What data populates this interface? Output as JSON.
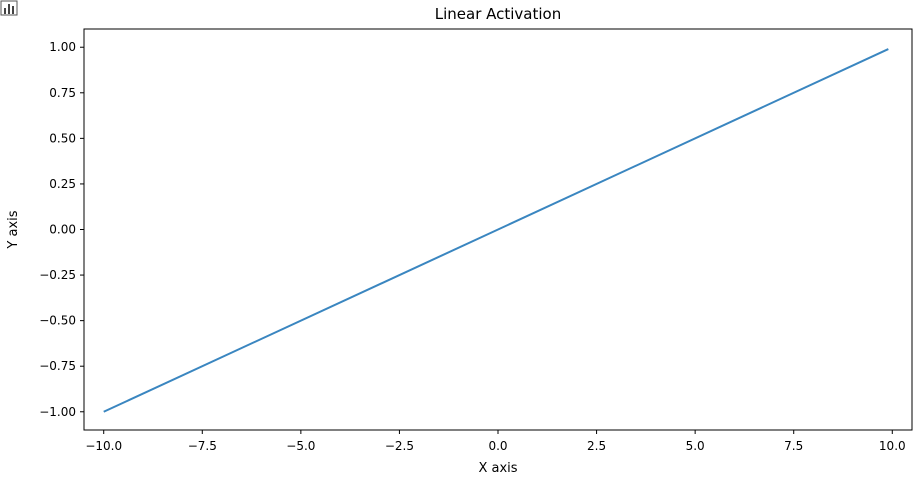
{
  "toolbar": {
    "icon": "bar-chart-icon"
  },
  "chart_data": {
    "type": "line",
    "title": "Linear Activation",
    "xlabel": "X axis",
    "ylabel": "Y axis",
    "xlim": [
      -10.5,
      10.5
    ],
    "ylim": [
      -1.1,
      1.1
    ],
    "xticks": [
      -10.0,
      -7.5,
      -5.0,
      -2.5,
      0.0,
      2.5,
      5.0,
      7.5,
      10.0
    ],
    "xtick_labels": [
      "−10.0",
      "−7.5",
      "−5.0",
      "−2.5",
      "0.0",
      "2.5",
      "5.0",
      "7.5",
      "10.0"
    ],
    "yticks": [
      1.0,
      0.75,
      0.5,
      0.25,
      0.0,
      -0.25,
      -0.5,
      -0.75,
      -1.0
    ],
    "ytick_labels": [
      "1.00",
      "0.75",
      "0.50",
      "0.25",
      "0.00",
      "−0.25",
      "−0.50",
      "−0.75",
      "−1.00"
    ],
    "grid": false,
    "series": [
      {
        "color": "#3a86c0",
        "x": [
          -10.0,
          9.9
        ],
        "y": [
          -1.0,
          0.99
        ]
      }
    ]
  }
}
